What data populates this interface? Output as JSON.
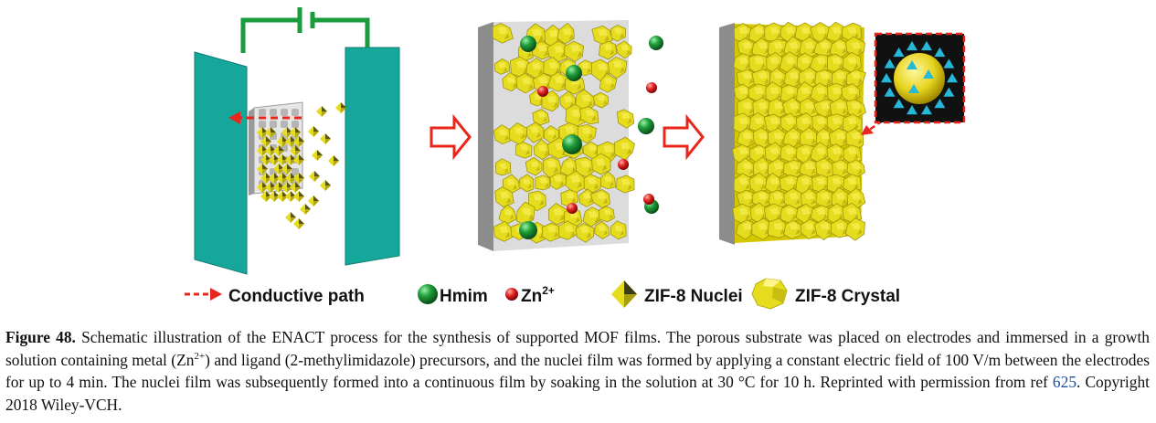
{
  "legend": {
    "conductive_path": "Conductive path",
    "hmim": "Hmim",
    "zn": "Zn",
    "zn_charge": "2+",
    "nuclei": "ZIF-8 Nuclei",
    "crystal": "ZIF-8 Crystal"
  },
  "colors": {
    "electrode": "#16a79b",
    "wire": "#1a9b3c",
    "crystal_yellow": "#e6dc1e",
    "hmim_green": "#1f9e3a",
    "zn_red": "#e02020",
    "arrow_red": "#e8261c",
    "substrate_gray": "#d4d4d4",
    "inset_bg": "#111111",
    "inset_triangle": "#27b8d8",
    "ref_link": "#1f4e9c"
  },
  "caption": {
    "label": "Figure 48.",
    "part1": " Schematic illustration of the ENACT process for the synthesis of supported MOF films. The porous substrate was placed on electrodes and immersed in a growth solution containing metal (Zn",
    "sup1": "2+",
    "part2": ") and ligand (2-methylimidazole) precursors, and the nuclei film was formed by applying a constant electric field of 100 V/m between the electrodes for up to 4 min. The nuclei film was subsequently formed into a continuous film by soaking in the solution at 30 °C for 10 h. Reprinted with permission from ref ",
    "ref": "625",
    "part3": ". Copyright 2018 Wiley-VCH."
  }
}
